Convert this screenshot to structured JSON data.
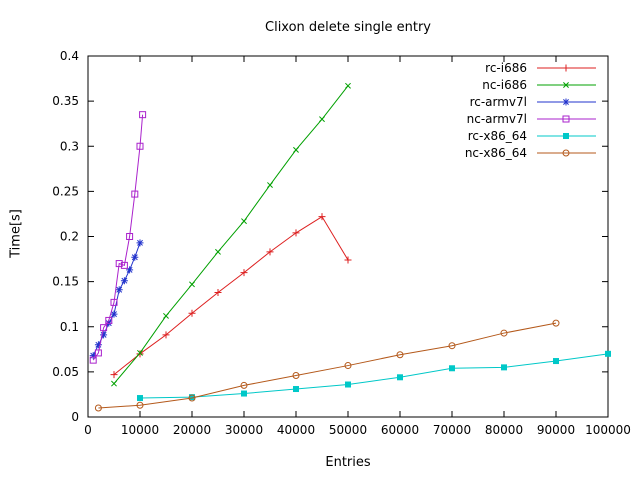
{
  "chart_data": {
    "type": "line",
    "title": "Clixon delete single entry",
    "xlabel": "Entries",
    "ylabel": "Time[s]",
    "xlim": [
      0,
      100000
    ],
    "ylim": [
      0,
      0.4
    ],
    "grid": false,
    "legend_position": "top-right-inside",
    "xticks": [
      0,
      10000,
      20000,
      30000,
      40000,
      50000,
      60000,
      70000,
      80000,
      90000,
      100000
    ],
    "xtick_labels": [
      "0",
      "10000",
      "20000",
      "30000",
      "40000",
      "50000",
      "60000",
      "70000",
      "80000",
      "90000",
      "100000"
    ],
    "yticks": [
      0,
      0.05,
      0.1,
      0.15,
      0.2,
      0.25,
      0.3,
      0.35,
      0.4
    ],
    "ytick_labels": [
      "0",
      "0.05",
      "0.1",
      "0.15",
      "0.2",
      "0.25",
      "0.3",
      "0.35",
      "0.4"
    ],
    "series": [
      {
        "name": "rc-i686",
        "color": "#dd1f1f",
        "marker": "plus",
        "points": [
          [
            5000,
            0.047
          ],
          [
            10000,
            0.07
          ],
          [
            15000,
            0.091
          ],
          [
            20000,
            0.115
          ],
          [
            25000,
            0.138
          ],
          [
            30000,
            0.16
          ],
          [
            35000,
            0.183
          ],
          [
            40000,
            0.204
          ],
          [
            45000,
            0.222
          ],
          [
            50000,
            0.174
          ]
        ]
      },
      {
        "name": "nc-i686",
        "color": "#00a000",
        "marker": "cross",
        "points": [
          [
            5000,
            0.037
          ],
          [
            10000,
            0.071
          ],
          [
            15000,
            0.112
          ],
          [
            20000,
            0.147
          ],
          [
            25000,
            0.183
          ],
          [
            30000,
            0.217
          ],
          [
            35000,
            0.257
          ],
          [
            40000,
            0.296
          ],
          [
            45000,
            0.33
          ],
          [
            50000,
            0.367
          ]
        ]
      },
      {
        "name": "rc-armv7l",
        "color": "#2233cc",
        "marker": "asterisk",
        "points": [
          [
            1000,
            0.068
          ],
          [
            2000,
            0.08
          ],
          [
            3000,
            0.091
          ],
          [
            4000,
            0.104
          ],
          [
            5000,
            0.114
          ],
          [
            6000,
            0.141
          ],
          [
            7000,
            0.151
          ],
          [
            8000,
            0.163
          ],
          [
            9000,
            0.177
          ],
          [
            10000,
            0.193
          ]
        ]
      },
      {
        "name": "nc-armv7l",
        "color": "#aa22cc",
        "marker": "square-open",
        "points": [
          [
            1000,
            0.063
          ],
          [
            2000,
            0.071
          ],
          [
            3000,
            0.099
          ],
          [
            4000,
            0.107
          ],
          [
            5000,
            0.127
          ],
          [
            6000,
            0.17
          ],
          [
            7000,
            0.168
          ],
          [
            8000,
            0.2
          ],
          [
            9000,
            0.247
          ],
          [
            10000,
            0.3
          ],
          [
            10500,
            0.335
          ]
        ]
      },
      {
        "name": "rc-x86_64",
        "color": "#00c8c8",
        "marker": "square-filled",
        "points": [
          [
            10000,
            0.021
          ],
          [
            20000,
            0.022
          ],
          [
            30000,
            0.026
          ],
          [
            40000,
            0.031
          ],
          [
            50000,
            0.036
          ],
          [
            60000,
            0.044
          ],
          [
            70000,
            0.054
          ],
          [
            80000,
            0.055
          ],
          [
            90000,
            0.062
          ],
          [
            100000,
            0.07
          ]
        ]
      },
      {
        "name": "nc-x86_64",
        "color": "#b4591b",
        "marker": "circle-open",
        "points": [
          [
            2000,
            0.01
          ],
          [
            10000,
            0.013
          ],
          [
            20000,
            0.021
          ],
          [
            30000,
            0.035
          ],
          [
            40000,
            0.046
          ],
          [
            50000,
            0.057
          ],
          [
            60000,
            0.069
          ],
          [
            70000,
            0.079
          ],
          [
            80000,
            0.093
          ],
          [
            90000,
            0.104
          ]
        ]
      }
    ]
  }
}
